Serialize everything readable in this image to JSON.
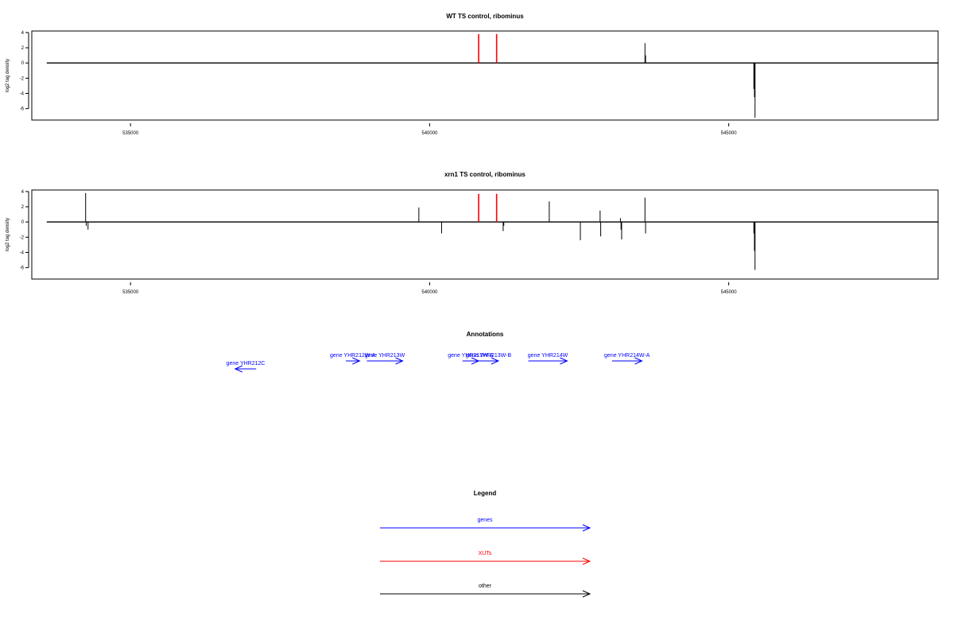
{
  "chart_data": [
    {
      "type": "line",
      "title": "WT TS control, ribominus",
      "ylabel": "log2 tag density",
      "xlim": [
        533350,
        548500
      ],
      "ylim": [
        -7.5,
        4.2
      ],
      "xticks": [
        535000,
        540000,
        545000
      ],
      "xtick_labels": [
        "535000",
        "540000",
        "545000"
      ],
      "yticks": [
        4,
        2,
        0,
        -2,
        -4,
        -6
      ],
      "ytick_labels": [
        "4",
        "2",
        "0",
        "-2",
        "-4",
        "-6"
      ],
      "baseline": {
        "x": [
          533600,
          548500
        ],
        "y": 0
      },
      "series": [
        {
          "category": "XUTs",
          "color": "#ff0000",
          "spikes": [
            [
              540820,
              3.8
            ],
            [
              541120,
              3.8
            ]
          ]
        },
        {
          "category": "other",
          "color": "#000000",
          "spikes": [
            [
              543600,
              2.6
            ],
            [
              543610,
              1.0
            ],
            [
              545420,
              -3.4
            ],
            [
              545430,
              -4.5
            ],
            [
              545440,
              -7.2
            ]
          ]
        }
      ]
    },
    {
      "type": "line",
      "title": "xrn1 TS control, ribominus",
      "ylabel": "log2 tag density",
      "xlim": [
        533350,
        548500
      ],
      "ylim": [
        -7.5,
        4.2
      ],
      "xticks": [
        535000,
        540000,
        545000
      ],
      "xtick_labels": [
        "535000",
        "540000",
        "545000"
      ],
      "yticks": [
        4,
        2,
        0,
        -2,
        -4,
        -6
      ],
      "ytick_labels": [
        "4",
        "2",
        "0",
        "-2",
        "-4",
        "-6"
      ],
      "baseline": {
        "x": [
          533600,
          548500
        ],
        "y": 0
      },
      "series": [
        {
          "category": "XUTs",
          "color": "#ff0000",
          "spikes": [
            [
              540820,
              3.7
            ],
            [
              541120,
              3.7
            ]
          ]
        },
        {
          "category": "other",
          "color": "#000000",
          "spikes": [
            [
              534250,
              3.8
            ],
            [
              534260,
              -0.5
            ],
            [
              534290,
              -1.0
            ],
            [
              539820,
              1.9
            ],
            [
              540200,
              -1.5
            ],
            [
              541230,
              -1.2
            ],
            [
              541240,
              -0.5
            ],
            [
              542000,
              2.7
            ],
            [
              542520,
              -2.4
            ],
            [
              542850,
              1.5
            ],
            [
              542860,
              -1.9
            ],
            [
              543190,
              0.5
            ],
            [
              543200,
              -1.0
            ],
            [
              543210,
              -2.3
            ],
            [
              543600,
              3.2
            ],
            [
              543610,
              -1.5
            ],
            [
              545420,
              -1.5
            ],
            [
              545430,
              -3.8
            ],
            [
              545440,
              -6.3
            ]
          ]
        }
      ]
    }
  ],
  "annotations": {
    "title": "Annotations",
    "xlim": [
      533350,
      548500
    ],
    "genes": [
      {
        "label": "gene YHR212C",
        "start": 536750,
        "end": 537100,
        "strand": "-",
        "row": 1
      },
      {
        "label": "gene YHR212W-A",
        "start": 538600,
        "end": 538830,
        "strand": "+",
        "row": 0
      },
      {
        "label": "gene YHR213W",
        "start": 538950,
        "end": 539550,
        "strand": "+",
        "row": 0
      },
      {
        "label": "gene YHR213W-A",
        "start": 540550,
        "end": 540820,
        "strand": "+",
        "row": 0
      },
      {
        "label": "gene YHR213W-B",
        "start": 540820,
        "end": 541150,
        "strand": "+",
        "row": 0
      },
      {
        "label": "gene YHR214W",
        "start": 541650,
        "end": 542300,
        "strand": "+",
        "row": 0
      },
      {
        "label": "gene YHR214W-A",
        "start": 543050,
        "end": 543550,
        "strand": "+",
        "row": 0
      }
    ]
  },
  "legend": {
    "title": "Legend",
    "items": [
      {
        "label": "genes",
        "color": "#0000ff"
      },
      {
        "label": "XUTs",
        "color": "#ff0000"
      },
      {
        "label": "other",
        "color": "#000000"
      }
    ]
  }
}
